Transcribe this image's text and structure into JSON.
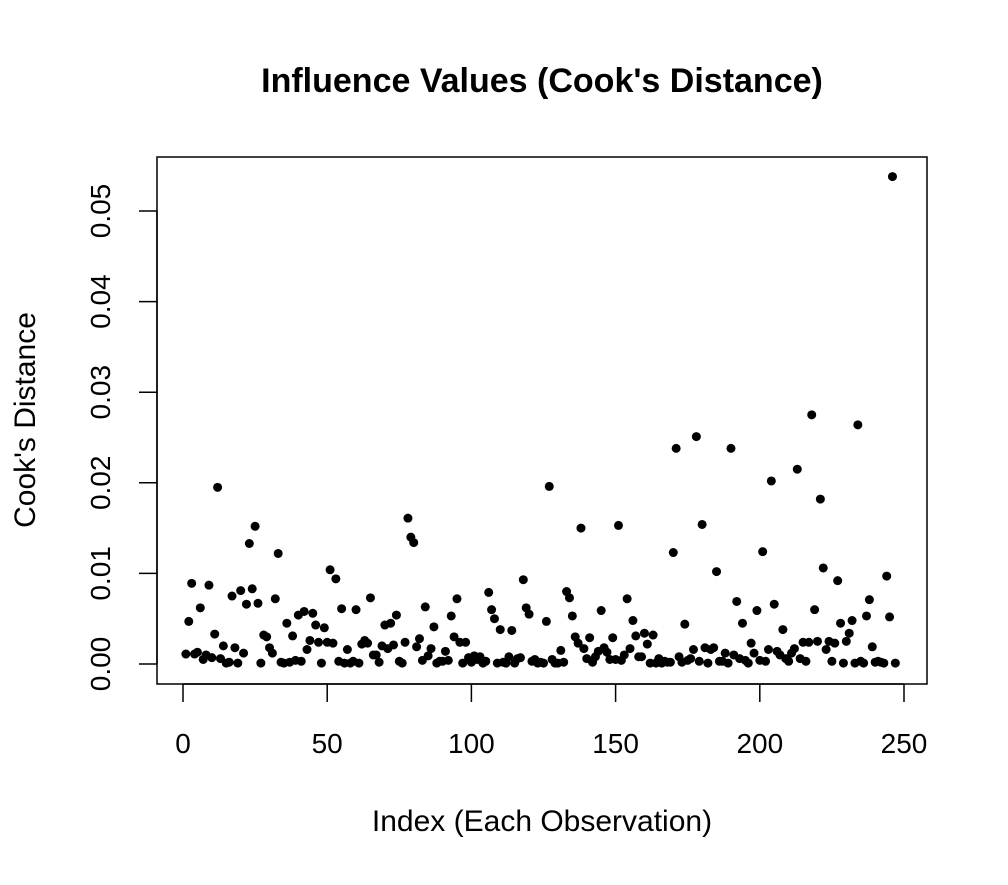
{
  "chart_data": {
    "type": "scatter",
    "title": "Influence Values (Cook's Distance)",
    "xlabel": "Index (Each Observation)",
    "ylabel": "Cook's Distance",
    "xlim": [
      0,
      250
    ],
    "ylim": [
      0,
      0.055
    ],
    "xticks": [
      0,
      50,
      100,
      150,
      200,
      250
    ],
    "xtick_labels": [
      "0",
      "50",
      "100",
      "150",
      "200",
      "250"
    ],
    "yticks": [
      0,
      0.01,
      0.02,
      0.03,
      0.04,
      0.05
    ],
    "ytick_labels": [
      "0.00",
      "0.01",
      "0.02",
      "0.03",
      "0.04",
      "0.05"
    ],
    "grid": false,
    "legend": "none",
    "marker_color": "#000000",
    "points": [
      [
        1,
        0.0011
      ],
      [
        2,
        0.0047
      ],
      [
        3,
        0.0089
      ],
      [
        4,
        0.0011
      ],
      [
        5,
        0.0013
      ],
      [
        6,
        0.0062
      ],
      [
        7,
        0.0005
      ],
      [
        8,
        0.001
      ],
      [
        9,
        0.0087
      ],
      [
        10,
        0.0007
      ],
      [
        11,
        0.0033
      ],
      [
        12,
        0.0195
      ],
      [
        13,
        0.0006
      ],
      [
        14,
        0.002
      ],
      [
        15,
        0.0001
      ],
      [
        16,
        0.0002
      ],
      [
        17,
        0.0075
      ],
      [
        18,
        0.0018
      ],
      [
        19,
        0.0001
      ],
      [
        20,
        0.0081
      ],
      [
        21,
        0.0012
      ],
      [
        22,
        0.0066
      ],
      [
        23,
        0.0133
      ],
      [
        24,
        0.0083
      ],
      [
        25,
        0.0152
      ],
      [
        26,
        0.0067
      ],
      [
        27,
        0.0001
      ],
      [
        28,
        0.0032
      ],
      [
        29,
        0.003
      ],
      [
        30,
        0.0018
      ],
      [
        31,
        0.0012
      ],
      [
        32,
        0.0072
      ],
      [
        33,
        0.0122
      ],
      [
        34,
        0.0002
      ],
      [
        35,
        0.0001
      ],
      [
        36,
        0.0045
      ],
      [
        37,
        0.0002
      ],
      [
        38,
        0.0031
      ],
      [
        39,
        0.0004
      ],
      [
        40,
        0.0054
      ],
      [
        41,
        0.0003
      ],
      [
        42,
        0.0058
      ],
      [
        43,
        0.0016
      ],
      [
        44,
        0.0026
      ],
      [
        45,
        0.0056
      ],
      [
        46,
        0.0043
      ],
      [
        47,
        0.0024
      ],
      [
        48,
        0.0001
      ],
      [
        49,
        0.004
      ],
      [
        50,
        0.0024
      ],
      [
        51,
        0.0104
      ],
      [
        52,
        0.0023
      ],
      [
        53,
        0.0094
      ],
      [
        54,
        0.0003
      ],
      [
        55,
        0.0061
      ],
      [
        56,
        0.0001
      ],
      [
        57,
        0.0016
      ],
      [
        58,
        0.0001
      ],
      [
        59,
        0.0003
      ],
      [
        60,
        0.006
      ],
      [
        61,
        0.0001
      ],
      [
        62,
        0.0022
      ],
      [
        63,
        0.0026
      ],
      [
        64,
        0.0023
      ],
      [
        65,
        0.0073
      ],
      [
        66,
        0.001
      ],
      [
        67,
        0.001
      ],
      [
        68,
        0.0002
      ],
      [
        69,
        0.002
      ],
      [
        70,
        0.0043
      ],
      [
        71,
        0.0017
      ],
      [
        72,
        0.0045
      ],
      [
        73,
        0.0021
      ],
      [
        74,
        0.0054
      ],
      [
        75,
        0.0003
      ],
      [
        76,
        0.0001
      ],
      [
        77,
        0.0024
      ],
      [
        78,
        0.0161
      ],
      [
        79,
        0.014
      ],
      [
        80,
        0.0134
      ],
      [
        81,
        0.0019
      ],
      [
        82,
        0.0028
      ],
      [
        83,
        0.0004
      ],
      [
        84,
        0.0063
      ],
      [
        85,
        0.0009
      ],
      [
        86,
        0.0017
      ],
      [
        87,
        0.0041
      ],
      [
        88,
        0.0001
      ],
      [
        89,
        0.0003
      ],
      [
        90,
        0.0003
      ],
      [
        91,
        0.0014
      ],
      [
        92,
        0.0004
      ],
      [
        93,
        0.0053
      ],
      [
        94,
        0.003
      ],
      [
        95,
        0.0072
      ],
      [
        96,
        0.0024
      ],
      [
        97,
        0.0001
      ],
      [
        98,
        0.0024
      ],
      [
        99,
        0.0007
      ],
      [
        100,
        0.0002
      ],
      [
        101,
        0.0009
      ],
      [
        102,
        0.0005
      ],
      [
        103,
        0.0008
      ],
      [
        104,
        0.0001
      ],
      [
        105,
        0.0003
      ],
      [
        106,
        0.0079
      ],
      [
        107,
        0.006
      ],
      [
        108,
        0.005
      ],
      [
        109,
        0.0001
      ],
      [
        110,
        0.0038
      ],
      [
        111,
        0.0002
      ],
      [
        112,
        0.0001
      ],
      [
        113,
        0.0008
      ],
      [
        114,
        0.0037
      ],
      [
        115,
        0.0001
      ],
      [
        116,
        0.0006
      ],
      [
        117,
        0.0007
      ],
      [
        118,
        0.0093
      ],
      [
        119,
        0.0062
      ],
      [
        120,
        0.0055
      ],
      [
        121,
        0.0003
      ],
      [
        122,
        0.0005
      ],
      [
        123,
        0.0001
      ],
      [
        124,
        0.0002
      ],
      [
        125,
        0.0001
      ],
      [
        126,
        0.0047
      ],
      [
        127,
        0.0196
      ],
      [
        128,
        0.0005
      ],
      [
        129,
        0.0001
      ],
      [
        130,
        0.0001
      ],
      [
        131,
        0.0015
      ],
      [
        132,
        0.0002
      ],
      [
        133,
        0.008
      ],
      [
        134,
        0.0073
      ],
      [
        135,
        0.0053
      ],
      [
        136,
        0.003
      ],
      [
        137,
        0.0023
      ],
      [
        138,
        0.015
      ],
      [
        139,
        0.0017
      ],
      [
        140,
        0.0006
      ],
      [
        141,
        0.0029
      ],
      [
        142,
        0.0002
      ],
      [
        143,
        0.0008
      ],
      [
        144,
        0.0014
      ],
      [
        145,
        0.0059
      ],
      [
        146,
        0.0018
      ],
      [
        147,
        0.0013
      ],
      [
        148,
        0.0005
      ],
      [
        149,
        0.0029
      ],
      [
        150,
        0.0005
      ],
      [
        151,
        0.0153
      ],
      [
        152,
        0.0004
      ],
      [
        153,
        0.001
      ],
      [
        154,
        0.0072
      ],
      [
        155,
        0.0017
      ],
      [
        156,
        0.0048
      ],
      [
        157,
        0.0031
      ],
      [
        158,
        0.0008
      ],
      [
        159,
        0.0008
      ],
      [
        160,
        0.0034
      ],
      [
        161,
        0.0022
      ],
      [
        162,
        0.0001
      ],
      [
        163,
        0.0032
      ],
      [
        164,
        0.0001
      ],
      [
        165,
        0.0006
      ],
      [
        166,
        0.0001
      ],
      [
        167,
        0.0003
      ],
      [
        168,
        0.0002
      ],
      [
        169,
        0.0002
      ],
      [
        170,
        0.0123
      ],
      [
        171,
        0.0238
      ],
      [
        172,
        0.0008
      ],
      [
        173,
        0.0002
      ],
      [
        174,
        0.0044
      ],
      [
        175,
        0.0004
      ],
      [
        176,
        0.0006
      ],
      [
        177,
        0.0016
      ],
      [
        178,
        0.0251
      ],
      [
        179,
        0.0003
      ],
      [
        180,
        0.0154
      ],
      [
        181,
        0.0018
      ],
      [
        182,
        0.0001
      ],
      [
        183,
        0.0016
      ],
      [
        184,
        0.0018
      ],
      [
        185,
        0.0102
      ],
      [
        186,
        0.0003
      ],
      [
        187,
        0.0003
      ],
      [
        188,
        0.0012
      ],
      [
        189,
        0.0001
      ],
      [
        190,
        0.0238
      ],
      [
        191,
        0.001
      ],
      [
        192,
        0.0069
      ],
      [
        193,
        0.0006
      ],
      [
        194,
        0.0045
      ],
      [
        195,
        0.0004
      ],
      [
        196,
        0.0001
      ],
      [
        197,
        0.0023
      ],
      [
        198,
        0.0012
      ],
      [
        199,
        0.0059
      ],
      [
        200,
        0.0004
      ],
      [
        201,
        0.0124
      ],
      [
        202,
        0.0003
      ],
      [
        203,
        0.0016
      ],
      [
        204,
        0.0202
      ],
      [
        205,
        0.0066
      ],
      [
        206,
        0.0014
      ],
      [
        207,
        0.001
      ],
      [
        208,
        0.0038
      ],
      [
        209,
        0.0006
      ],
      [
        210,
        0.0003
      ],
      [
        211,
        0.0012
      ],
      [
        212,
        0.0017
      ],
      [
        213,
        0.0215
      ],
      [
        214,
        0.0006
      ],
      [
        215,
        0.0024
      ],
      [
        216,
        0.0003
      ],
      [
        217,
        0.0024
      ],
      [
        218,
        0.0275
      ],
      [
        219,
        0.006
      ],
      [
        220,
        0.0025
      ],
      [
        221,
        0.0182
      ],
      [
        222,
        0.0106
      ],
      [
        223,
        0.0016
      ],
      [
        224,
        0.0025
      ],
      [
        225,
        0.0003
      ],
      [
        226,
        0.0023
      ],
      [
        227,
        0.0092
      ],
      [
        228,
        0.0045
      ],
      [
        229,
        0.0001
      ],
      [
        230,
        0.0025
      ],
      [
        231,
        0.0034
      ],
      [
        232,
        0.0048
      ],
      [
        233,
        0.0001
      ],
      [
        234,
        0.0264
      ],
      [
        235,
        0.0003
      ],
      [
        236,
        0.0001
      ],
      [
        237,
        0.0053
      ],
      [
        238,
        0.0071
      ],
      [
        239,
        0.0019
      ],
      [
        240,
        0.0002
      ],
      [
        241,
        0.0003
      ],
      [
        242,
        0.0002
      ],
      [
        243,
        0.0001
      ],
      [
        244,
        0.0097
      ],
      [
        245,
        0.0052
      ],
      [
        246,
        0.0538
      ],
      [
        247,
        0.0001
      ]
    ]
  }
}
